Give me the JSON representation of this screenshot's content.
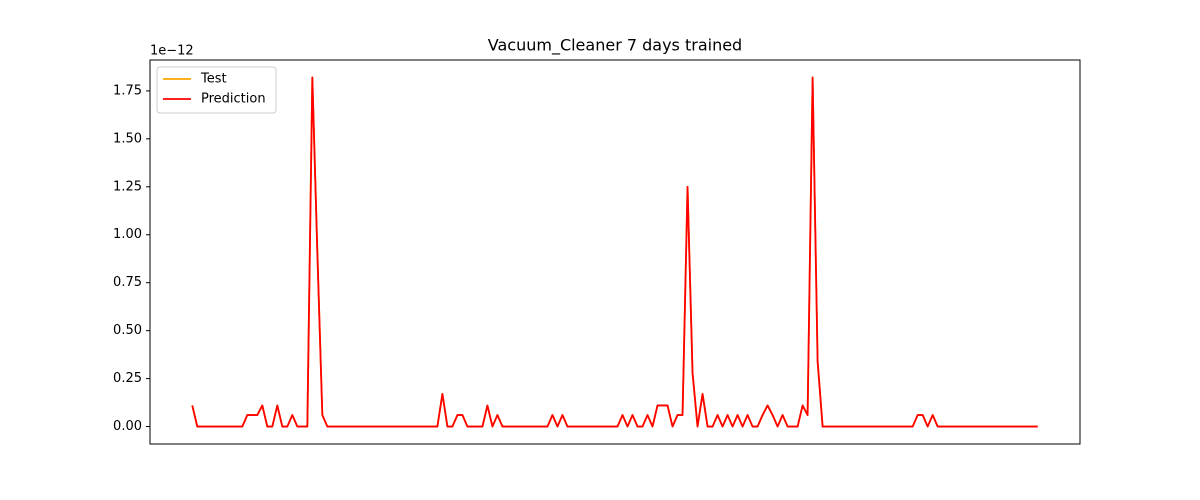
{
  "chart_data": {
    "type": "line",
    "title": "Vacuum_Cleaner 7 days trained",
    "y_offset_label": "1e−12",
    "x": [
      0,
      1,
      2,
      3,
      4,
      5,
      6,
      7,
      8,
      9,
      10,
      11,
      12,
      13,
      14,
      15,
      16,
      17,
      18,
      19,
      20,
      21,
      22,
      23,
      24,
      25,
      26,
      27,
      28,
      29,
      30,
      31,
      32,
      33,
      34,
      35,
      36,
      37,
      38,
      39,
      40,
      41,
      42,
      43,
      44,
      45,
      46,
      47,
      48,
      49,
      50,
      51,
      52,
      53,
      54,
      55,
      56,
      57,
      58,
      59,
      60,
      61,
      62,
      63,
      64,
      65,
      66,
      67,
      68,
      69,
      70,
      71,
      72,
      73,
      74,
      75,
      76,
      77,
      78,
      79,
      80,
      81,
      82,
      83,
      84,
      85,
      86,
      87,
      88,
      89,
      90,
      91,
      92,
      93,
      94,
      95,
      96,
      97,
      98,
      99,
      100,
      101,
      102,
      103,
      104,
      105,
      106,
      107,
      108,
      109,
      110,
      111,
      112,
      113,
      114,
      115,
      116,
      117,
      118,
      119,
      120,
      121,
      122,
      123,
      124,
      125,
      126,
      127,
      128,
      129,
      130,
      131,
      132,
      133,
      134,
      135,
      136,
      137,
      138,
      139,
      140,
      141,
      142,
      143,
      144,
      145,
      146,
      147,
      148,
      149,
      150,
      151,
      152,
      153,
      154,
      155,
      156,
      157,
      158,
      159,
      160,
      161,
      162,
      163,
      164,
      165,
      166,
      167,
      168,
      169
    ],
    "series": [
      {
        "name": "Test",
        "color": "#ffa500",
        "values": [
          0.11,
          0,
          0,
          0,
          0,
          0,
          0,
          0,
          0,
          0,
          0,
          0.06,
          0.06,
          0.06,
          0.11,
          0,
          0,
          0.11,
          0,
          0,
          0.06,
          0,
          0,
          0,
          1.82,
          0.91,
          0.06,
          0,
          0,
          0,
          0,
          0,
          0,
          0,
          0,
          0,
          0,
          0,
          0,
          0,
          0,
          0,
          0,
          0,
          0,
          0,
          0,
          0,
          0,
          0,
          0.17,
          0,
          0,
          0.06,
          0.06,
          0,
          0,
          0,
          0,
          0.11,
          0,
          0.06,
          0,
          0,
          0,
          0,
          0,
          0,
          0,
          0,
          0,
          0,
          0.06,
          0,
          0.06,
          0,
          0,
          0,
          0,
          0,
          0,
          0,
          0,
          0,
          0,
          0,
          0.06,
          0,
          0.06,
          0,
          0,
          0.06,
          0,
          0.11,
          0.11,
          0.11,
          0,
          0.06,
          0.06,
          1.25,
          0.28,
          0,
          0.17,
          0,
          0,
          0.06,
          0,
          0.06,
          0,
          0.06,
          0,
          0.06,
          0,
          0,
          0.06,
          0.11,
          0.06,
          0,
          0.06,
          0,
          0,
          0,
          0.11,
          0.06,
          1.82,
          0.34,
          0,
          0,
          0,
          0,
          0,
          0,
          0,
          0,
          0,
          0,
          0,
          0,
          0,
          0,
          0,
          0,
          0,
          0,
          0,
          0.06,
          0.06,
          0,
          0.06,
          0,
          0,
          0,
          0,
          0,
          0,
          0,
          0,
          0,
          0,
          0,
          0,
          0,
          0,
          0,
          0,
          0,
          0,
          0,
          0,
          0
        ]
      },
      {
        "name": "Prediction",
        "color": "#ff0000",
        "values": [
          0.11,
          0,
          0,
          0,
          0,
          0,
          0,
          0,
          0,
          0,
          0,
          0.06,
          0.06,
          0.06,
          0.11,
          0,
          0,
          0.11,
          0,
          0,
          0.06,
          0,
          0,
          0,
          1.82,
          0.91,
          0.06,
          0,
          0,
          0,
          0,
          0,
          0,
          0,
          0,
          0,
          0,
          0,
          0,
          0,
          0,
          0,
          0,
          0,
          0,
          0,
          0,
          0,
          0,
          0,
          0.17,
          0,
          0,
          0.06,
          0.06,
          0,
          0,
          0,
          0,
          0.11,
          0,
          0.06,
          0,
          0,
          0,
          0,
          0,
          0,
          0,
          0,
          0,
          0,
          0.06,
          0,
          0.06,
          0,
          0,
          0,
          0,
          0,
          0,
          0,
          0,
          0,
          0,
          0,
          0.06,
          0,
          0.06,
          0,
          0,
          0.06,
          0,
          0.11,
          0.11,
          0.11,
          0,
          0.06,
          0.06,
          1.25,
          0.28,
          0,
          0.17,
          0,
          0,
          0.06,
          0,
          0.06,
          0,
          0.06,
          0,
          0.06,
          0,
          0,
          0.06,
          0.11,
          0.06,
          0,
          0.06,
          0,
          0,
          0,
          0.11,
          0.06,
          1.82,
          0.34,
          0,
          0,
          0,
          0,
          0,
          0,
          0,
          0,
          0,
          0,
          0,
          0,
          0,
          0,
          0,
          0,
          0,
          0,
          0,
          0.06,
          0.06,
          0,
          0.06,
          0,
          0,
          0,
          0,
          0,
          0,
          0,
          0,
          0,
          0,
          0,
          0,
          0,
          0,
          0,
          0,
          0,
          0,
          0,
          0,
          0
        ]
      }
    ],
    "xlim": [
      -8.45,
      177.45
    ],
    "ylim": [
      -0.091,
      1.911
    ],
    "yticks": [
      {
        "value": 0,
        "label": "0.00"
      },
      {
        "value": 0.25,
        "label": "0.25"
      },
      {
        "value": 0.5,
        "label": "0.50"
      },
      {
        "value": 0.75,
        "label": "0.75"
      },
      {
        "value": 1,
        "label": "1.00"
      },
      {
        "value": 1.25,
        "label": "1.25"
      },
      {
        "value": 1.5,
        "label": "1.50"
      },
      {
        "value": 1.75,
        "label": "1.75"
      }
    ],
    "grid": false,
    "legend": "upper left"
  }
}
